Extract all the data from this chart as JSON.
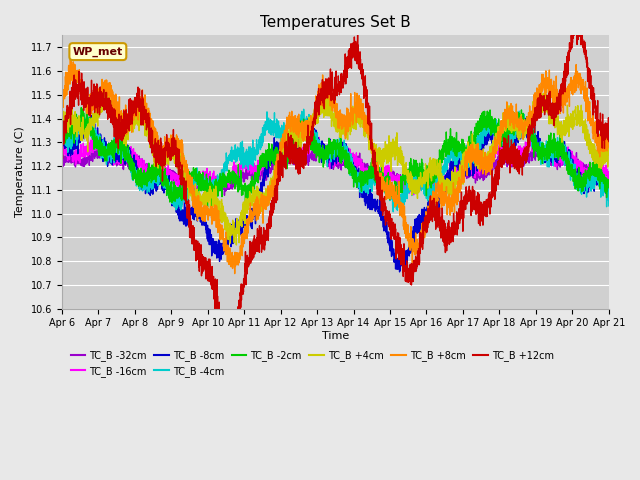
{
  "title": "Temperatures Set B",
  "xlabel": "Time",
  "ylabel": "Temperature (C)",
  "ylim": [
    10.6,
    11.75
  ],
  "xlim": [
    0,
    15.0
  ],
  "background_color": "#e8e8e8",
  "plot_bg_color": "#d0d0d0",
  "grid_color": "#ffffff",
  "annotation_text": "WP_met",
  "annotation_bg": "#ffffcc",
  "annotation_border": "#cc9900",
  "x_tick_labels": [
    "Apr 6",
    "Apr 7",
    "Apr 8",
    "Apr 9",
    "Apr 10",
    "Apr 11",
    "Apr 12",
    "Apr 13",
    "Apr 14",
    "Apr 15",
    "Apr 16",
    "Apr 17",
    "Apr 18",
    "Apr 19",
    "Apr 20",
    "Apr 21"
  ],
  "series": [
    {
      "label": "TC_B -32cm",
      "color": "#9900cc"
    },
    {
      "label": "TC_B -16cm",
      "color": "#ff00ff"
    },
    {
      "label": "TC_B -8cm",
      "color": "#0000cc"
    },
    {
      "label": "TC_B -4cm",
      "color": "#00cccc"
    },
    {
      "label": "TC_B -2cm",
      "color": "#00cc00"
    },
    {
      "label": "TC_B +4cm",
      "color": "#cccc00"
    },
    {
      "label": "TC_B +8cm",
      "color": "#ff8800"
    },
    {
      "label": "TC_B +12cm",
      "color": "#cc0000"
    }
  ]
}
